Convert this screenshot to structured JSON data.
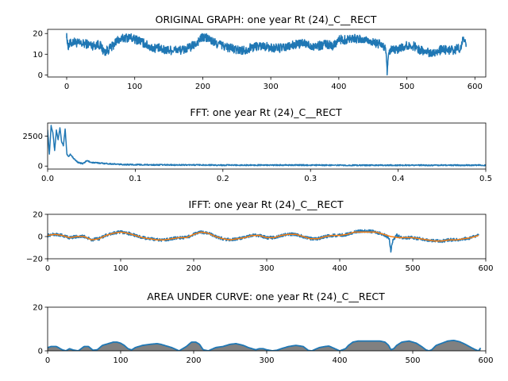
{
  "colors": {
    "series_blue": "#1f77b4",
    "series_orange": "#ff7f0e",
    "area_fill": "#808080"
  },
  "chart_data": [
    {
      "id": "original",
      "type": "line",
      "title": "ORIGINAL GRAPH: one year Rt (24)_C__RECT",
      "xlabel": "",
      "ylabel": "",
      "xlim": [
        -28,
        616
      ],
      "ylim": [
        -1,
        22
      ],
      "xticks": [
        0,
        100,
        200,
        300,
        400,
        500,
        600
      ],
      "yticks": [
        0,
        10,
        20
      ],
      "grid": false,
      "series": [
        {
          "color": "#1f77b4",
          "noise": 2.2,
          "x": [
            0,
            1,
            2,
            5,
            10,
            20,
            30,
            40,
            45,
            50,
            55,
            60,
            65,
            70,
            75,
            80,
            85,
            90,
            95,
            100,
            105,
            110,
            115,
            120,
            125,
            130,
            135,
            140,
            145,
            150,
            160,
            170,
            180,
            190,
            195,
            200,
            205,
            210,
            215,
            220,
            225,
            230,
            240,
            250,
            260,
            270,
            280,
            290,
            300,
            310,
            320,
            330,
            340,
            350,
            360,
            370,
            380,
            390,
            400,
            410,
            420,
            430,
            440,
            450,
            455,
            460,
            465,
            468,
            470,
            471,
            472,
            474,
            478,
            485,
            490,
            500,
            510,
            520,
            530,
            540,
            550,
            560,
            570,
            575,
            580,
            582,
            584,
            587
          ],
          "values": [
            20,
            15,
            14,
            15,
            16,
            15,
            15,
            14,
            15,
            14,
            11,
            12,
            13,
            15,
            17,
            17,
            18,
            18,
            18,
            17,
            17,
            16,
            15,
            14,
            13,
            13,
            13,
            12,
            12,
            12,
            12,
            12,
            13,
            15,
            17,
            18,
            18,
            17,
            16,
            15,
            15,
            14,
            13,
            12,
            12,
            13,
            14,
            14,
            13,
            13,
            13,
            14,
            15,
            15,
            14,
            14,
            15,
            14,
            17,
            17,
            18,
            17,
            17,
            16,
            15,
            15,
            14,
            13,
            8,
            0,
            5,
            11,
            12,
            12,
            13,
            14,
            14,
            12,
            11,
            11,
            12,
            12,
            12,
            13,
            13,
            17,
            16,
            15
          ]
        }
      ]
    },
    {
      "id": "fft",
      "type": "line",
      "title": "FFT: one year Rt (24)_C__RECT",
      "xlabel": "",
      "ylabel": "",
      "xlim": [
        0,
        0.5
      ],
      "ylim": [
        -250,
        3600
      ],
      "xticks": [
        0,
        0.1,
        0.2,
        0.3,
        0.4,
        0.5
      ],
      "xtick_labels": [
        "0.0",
        "0.1",
        "0.2",
        "0.3",
        "0.4",
        "0.5"
      ],
      "yticks": [
        0,
        2500
      ],
      "grid": false,
      "series": [
        {
          "color": "#1f77b4",
          "noise": 50,
          "x": [
            0,
            0.002,
            0.004,
            0.006,
            0.008,
            0.01,
            0.012,
            0.014,
            0.016,
            0.018,
            0.02,
            0.022,
            0.024,
            0.026,
            0.03,
            0.035,
            0.04,
            0.045,
            0.05,
            0.06,
            0.07,
            0.08,
            0.09,
            0.1,
            0.12,
            0.15,
            0.2,
            0.25,
            0.3,
            0.35,
            0.4,
            0.45,
            0.5
          ],
          "values": [
            3000,
            1000,
            3400,
            2800,
            1300,
            3000,
            2200,
            3200,
            2000,
            1700,
            3100,
            1000,
            800,
            1000,
            600,
            300,
            200,
            450,
            300,
            250,
            200,
            150,
            120,
            120,
            100,
            100,
            80,
            80,
            80,
            70,
            70,
            70,
            70
          ]
        }
      ]
    },
    {
      "id": "ifft",
      "type": "line",
      "title": "IFFT: one year Rt (24)_C__RECT",
      "xlabel": "",
      "ylabel": "",
      "xlim": [
        0,
        600
      ],
      "ylim": [
        -20,
        20
      ],
      "xticks": [
        0,
        100,
        200,
        300,
        400,
        500,
        600
      ],
      "yticks": [
        -20,
        0,
        20
      ],
      "grid": false,
      "series": [
        {
          "color": "#1f77b4",
          "noise": 1.4,
          "x": [
            0,
            10,
            20,
            30,
            40,
            50,
            60,
            70,
            80,
            90,
            100,
            110,
            120,
            130,
            140,
            150,
            160,
            170,
            180,
            190,
            200,
            210,
            220,
            230,
            240,
            250,
            260,
            270,
            280,
            290,
            300,
            310,
            320,
            330,
            340,
            350,
            360,
            370,
            380,
            390,
            400,
            410,
            420,
            430,
            440,
            450,
            460,
            465,
            468,
            470,
            471,
            473,
            478,
            485,
            490,
            500,
            510,
            520,
            530,
            540,
            550,
            560,
            570,
            580,
            590
          ],
          "values": [
            1,
            2,
            1,
            -1,
            0,
            0,
            -3,
            -2,
            1,
            3,
            4,
            3,
            1,
            -1,
            -2,
            -3,
            -3,
            -2,
            -1,
            -1,
            2,
            4,
            3,
            0,
            -2,
            -3,
            -2,
            -1,
            1,
            1,
            -1,
            -1,
            1,
            2,
            2,
            0,
            -2,
            -2,
            0,
            1,
            1,
            2,
            4,
            5,
            5,
            4,
            2,
            0,
            -2,
            -14,
            -8,
            -3,
            1,
            -1,
            -1,
            -1,
            -2,
            -3,
            -4,
            -4,
            -3,
            -3,
            -2,
            -1,
            1
          ]
        },
        {
          "color": "#ff7f0e",
          "noise": 0,
          "x": [
            0,
            10,
            20,
            30,
            40,
            50,
            60,
            70,
            80,
            90,
            100,
            110,
            120,
            130,
            140,
            150,
            160,
            170,
            180,
            190,
            200,
            210,
            220,
            230,
            240,
            250,
            260,
            270,
            280,
            290,
            300,
            310,
            320,
            330,
            340,
            350,
            360,
            370,
            380,
            390,
            400,
            410,
            420,
            430,
            440,
            450,
            460,
            470,
            480,
            490,
            500,
            510,
            520,
            530,
            540,
            550,
            560,
            570,
            580,
            590
          ],
          "values": [
            1,
            2,
            1,
            -1,
            0,
            0,
            -3,
            -2,
            1,
            3,
            4,
            3,
            1,
            -1,
            -2,
            -3,
            -3,
            -2,
            -1,
            -1,
            2,
            4,
            3,
            0,
            -2,
            -3,
            -2,
            -1,
            1,
            1,
            -1,
            -1,
            1,
            2,
            2,
            0,
            -2,
            -2,
            0,
            1,
            1,
            2,
            4,
            4,
            4,
            4,
            2,
            0,
            -1,
            -1,
            -1,
            -2,
            -3,
            -4,
            -4,
            -3,
            -3,
            -2,
            -1,
            1
          ]
        }
      ]
    },
    {
      "id": "area",
      "type": "area",
      "title": "AREA UNDER CURVE: one year Rt (24)_C__RECT",
      "xlabel": "",
      "ylabel": "",
      "xlim": [
        0,
        600
      ],
      "ylim": [
        0,
        20
      ],
      "xticks": [
        0,
        100,
        200,
        300,
        400,
        500,
        600
      ],
      "yticks": [
        0,
        20
      ],
      "grid": false,
      "series": [
        {
          "color": "#1f77b4",
          "fill": "#808080",
          "x": [
            0,
            5,
            12,
            20,
            25,
            30,
            35,
            42,
            50,
            56,
            62,
            68,
            75,
            85,
            90,
            95,
            100,
            105,
            110,
            115,
            120,
            130,
            140,
            150,
            155,
            160,
            170,
            180,
            185,
            190,
            197,
            203,
            208,
            213,
            220,
            230,
            240,
            250,
            258,
            262,
            268,
            275,
            285,
            290,
            295,
            300,
            308,
            314,
            320,
            330,
            340,
            350,
            357,
            362,
            367,
            372,
            380,
            385,
            390,
            400,
            408,
            412,
            418,
            425,
            435,
            445,
            455,
            462,
            467,
            470,
            474,
            478,
            485,
            495,
            505,
            512,
            518,
            522,
            526,
            532,
            540,
            548,
            556,
            564,
            572,
            580,
            586,
            590,
            593
          ],
          "values": [
            1.5,
            2,
            2,
            0.5,
            0,
            1,
            0.4,
            0,
            2,
            2,
            0.3,
            0.5,
            2.5,
            3.5,
            4,
            4,
            3.5,
            2.5,
            1,
            0.4,
            1.5,
            2.5,
            3,
            3.3,
            3,
            2.5,
            1.5,
            0,
            1,
            2,
            4,
            4,
            3,
            0.5,
            0,
            1.5,
            2,
            3,
            3.3,
            3,
            2.5,
            1.5,
            0.5,
            1,
            1,
            0.5,
            0,
            0.3,
            1,
            2,
            2.5,
            2,
            0.2,
            0,
            0.8,
            1.5,
            2,
            2.2,
            1.5,
            0,
            1,
            2.5,
            4,
            4.5,
            4.5,
            4.5,
            4.5,
            4,
            2.5,
            0.5,
            1,
            2.5,
            4,
            4.5,
            3.5,
            2,
            0.5,
            0,
            0.5,
            2.5,
            3.5,
            4.5,
            4.8,
            4.2,
            3,
            1.5,
            0.5,
            0,
            1.3
          ]
        }
      ]
    }
  ]
}
